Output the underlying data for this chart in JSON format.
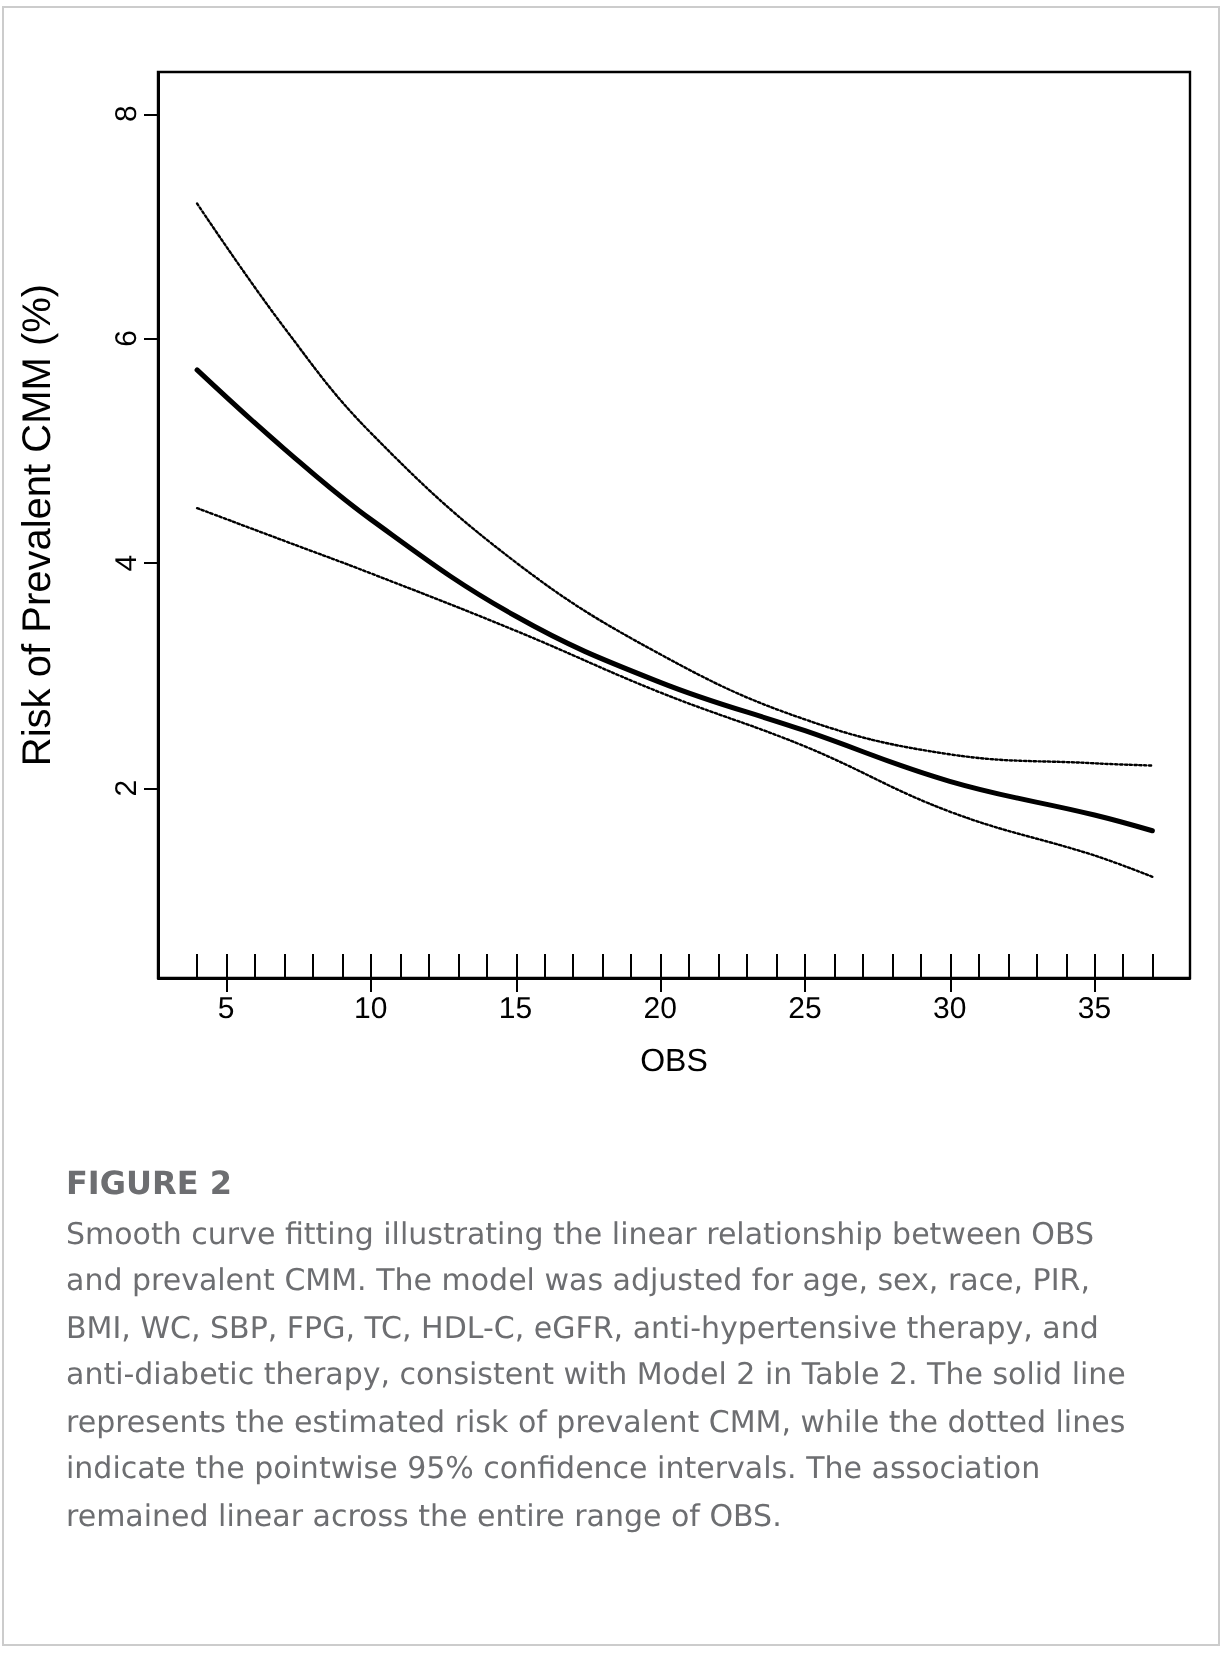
{
  "chart_data": {
    "type": "line",
    "title": "FIGURE 2",
    "xlabel": "OBS",
    "ylabel": "Risk of Prevalent CMM (%)",
    "annotations": [
      "Smooth curve fitting illustrating the linear relationship between OBS and prevalent CMM. The model was adjusted for age, sex, race, PIR, BMI, WC, SBP, FPG, TC, HDL-C, eGFR, anti-hypertensive therapy, and anti-diabetic therapy, consistent with Model 2 in Table 2. The solid line represents the estimated risk of prevalent CMM, while the dotted lines indicate the pointwise 95% confidence intervals. The association remained linear across the entire range of OBS."
    ],
    "x": [
      4,
      7,
      10,
      15,
      20,
      25,
      30,
      35,
      37
    ],
    "series": [
      {
        "color": "#000000",
        "line_style": "solid",
        "values": [
          5.72,
          5.02,
          4.39,
          3.53,
          2.94,
          2.51,
          2.06,
          1.76,
          1.62
        ]
      },
      {
        "color": "#000000",
        "line_style": "dotted",
        "values": [
          7.2,
          6.1,
          5.16,
          4.01,
          3.19,
          2.61,
          2.3,
          2.22,
          2.2
        ]
      },
      {
        "color": "#000000",
        "line_style": "dotted",
        "values": [
          4.49,
          4.2,
          3.91,
          3.4,
          2.85,
          2.37,
          1.79,
          1.4,
          1.21
        ]
      }
    ],
    "xlim": [
      2.65,
      38.3
    ],
    "xticks": [
      {
        "value": 4,
        "label": null
      },
      5,
      {
        "value": 6,
        "label": null
      },
      {
        "value": 7,
        "label": null
      },
      {
        "value": 8,
        "label": null
      },
      {
        "value": 9,
        "label": null
      },
      10,
      {
        "value": 11,
        "label": null
      },
      {
        "value": 12,
        "label": null
      },
      {
        "value": 13,
        "label": null
      },
      {
        "value": 14,
        "label": null
      },
      15,
      {
        "value": 16,
        "label": null
      },
      {
        "value": 17,
        "label": null
      },
      {
        "value": 18,
        "label": null
      },
      {
        "value": 19,
        "label": null
      },
      20,
      {
        "value": 21,
        "label": null
      },
      {
        "value": 22,
        "label": null
      },
      {
        "value": 23,
        "label": null
      },
      {
        "value": 24,
        "label": null
      },
      25,
      {
        "value": 26,
        "label": null
      },
      {
        "value": 27,
        "label": null
      },
      {
        "value": 28,
        "label": null
      },
      {
        "value": 29,
        "label": null
      },
      30,
      {
        "value": 31,
        "label": null
      },
      {
        "value": 32,
        "label": null
      },
      {
        "value": 33,
        "label": null
      },
      {
        "value": 34,
        "label": null
      },
      35,
      {
        "value": 36,
        "label": null
      },
      {
        "value": 37,
        "label": null
      }
    ],
    "ylim": [
      0.31,
      8.37
    ],
    "yticks": [
      2,
      4,
      6,
      8
    ],
    "grid": false,
    "marker": "none"
  }
}
